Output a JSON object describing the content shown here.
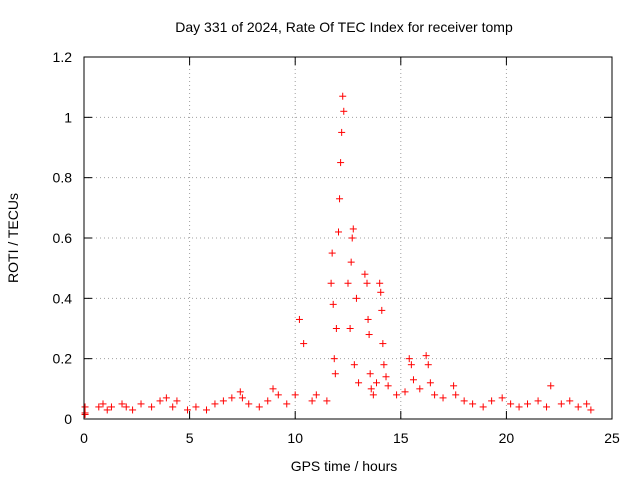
{
  "chart_data": {
    "type": "scatter",
    "title": "Day 331 of 2024, Rate Of TEC Index for receiver tomp",
    "xlabel": "GPS time / hours",
    "ylabel": "ROTI / TECUs",
    "xlim": [
      0,
      25
    ],
    "ylim": [
      0,
      1.2
    ],
    "xticks": [
      0,
      5,
      10,
      15,
      20,
      25
    ],
    "xtick_labels": [
      "0",
      "5",
      "10",
      "15",
      "20",
      "25"
    ],
    "yticks": [
      0,
      0.2,
      0.4,
      0.6,
      0.8,
      1.0,
      1.2
    ],
    "ytick_labels": [
      "0",
      "0.2",
      "0.4",
      "0.6",
      "0.8",
      "1",
      "1.2"
    ],
    "grid": true,
    "marker": "plus",
    "series_color": "#ff0000",
    "series": [
      {
        "name": "ROTI",
        "x": [
          0.05,
          0.05,
          0.05,
          0.7,
          0.9,
          1.1,
          1.3,
          1.8,
          2.0,
          2.3,
          2.7,
          3.2,
          3.6,
          3.9,
          4.2,
          4.4,
          4.9,
          5.3,
          5.8,
          6.2,
          6.6,
          7.0,
          7.4,
          7.5,
          7.8,
          8.3,
          8.7,
          8.95,
          9.2,
          9.6,
          10.0,
          10.2,
          10.4,
          10.8,
          11.0,
          11.5,
          11.7,
          11.75,
          11.8,
          11.85,
          11.9,
          11.95,
          12.05,
          12.1,
          12.15,
          12.2,
          12.25,
          12.3,
          12.5,
          12.6,
          12.65,
          12.7,
          12.75,
          12.8,
          12.9,
          13.0,
          13.3,
          13.4,
          13.45,
          13.5,
          13.55,
          13.6,
          13.7,
          13.85,
          14.0,
          14.05,
          14.1,
          14.15,
          14.2,
          14.3,
          14.4,
          14.8,
          15.2,
          15.4,
          15.5,
          15.6,
          15.9,
          16.2,
          16.3,
          16.4,
          16.6,
          17.0,
          17.5,
          17.6,
          18.0,
          18.4,
          18.9,
          19.3,
          19.8,
          20.2,
          20.6,
          21.0,
          21.5,
          21.9,
          22.1,
          22.6,
          23.0,
          23.4,
          23.8,
          24.0
        ],
        "y": [
          0.02,
          0.04,
          0.015,
          0.04,
          0.05,
          0.03,
          0.04,
          0.05,
          0.04,
          0.03,
          0.05,
          0.04,
          0.06,
          0.07,
          0.04,
          0.06,
          0.03,
          0.04,
          0.03,
          0.05,
          0.06,
          0.07,
          0.09,
          0.07,
          0.05,
          0.04,
          0.06,
          0.1,
          0.08,
          0.05,
          0.08,
          0.33,
          0.25,
          0.06,
          0.08,
          0.06,
          0.45,
          0.55,
          0.38,
          0.2,
          0.15,
          0.3,
          0.62,
          0.73,
          0.85,
          0.95,
          1.07,
          1.02,
          0.45,
          0.3,
          0.52,
          0.6,
          0.63,
          0.18,
          0.4,
          0.12,
          0.48,
          0.45,
          0.33,
          0.28,
          0.15,
          0.1,
          0.08,
          0.12,
          0.45,
          0.42,
          0.36,
          0.25,
          0.18,
          0.14,
          0.11,
          0.08,
          0.09,
          0.2,
          0.18,
          0.13,
          0.1,
          0.21,
          0.18,
          0.12,
          0.08,
          0.07,
          0.11,
          0.08,
          0.06,
          0.05,
          0.04,
          0.06,
          0.07,
          0.05,
          0.04,
          0.05,
          0.06,
          0.04,
          0.11,
          0.05,
          0.06,
          0.04,
          0.05,
          0.03
        ]
      }
    ]
  }
}
